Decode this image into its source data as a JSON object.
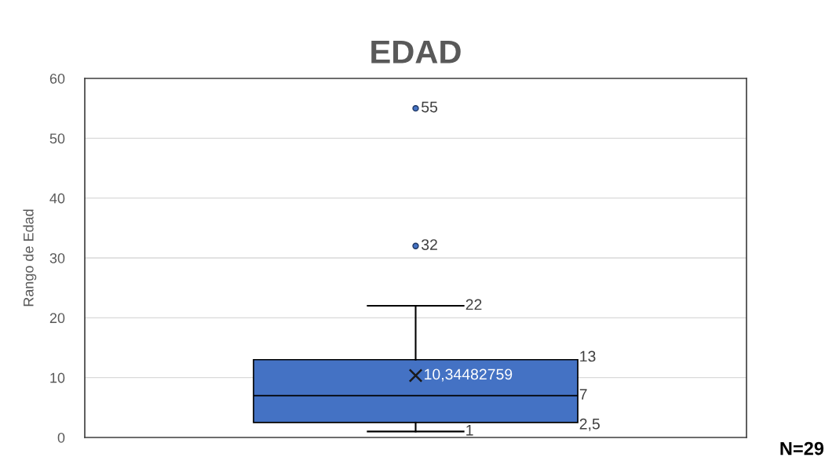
{
  "chart_data": {
    "type": "box",
    "title": "EDAD",
    "ylabel": "Rango de Edad",
    "categories": [
      null
    ],
    "boxes": [
      {
        "low": 1,
        "q1": 2.5,
        "median": 7,
        "q3": 13,
        "high": 22,
        "mean": 10.34482759,
        "outliers": [
          32,
          55
        ]
      }
    ],
    "color": "#4472c4",
    "ylim": [
      0,
      60
    ],
    "yticks": [
      0,
      10,
      20,
      30,
      40,
      50,
      60
    ],
    "grid": "y",
    "legend": false,
    "annotations": [
      "N=29",
      "1",
      "2,5",
      "7",
      "13",
      "22",
      "10,34482759",
      "32",
      "55"
    ]
  }
}
